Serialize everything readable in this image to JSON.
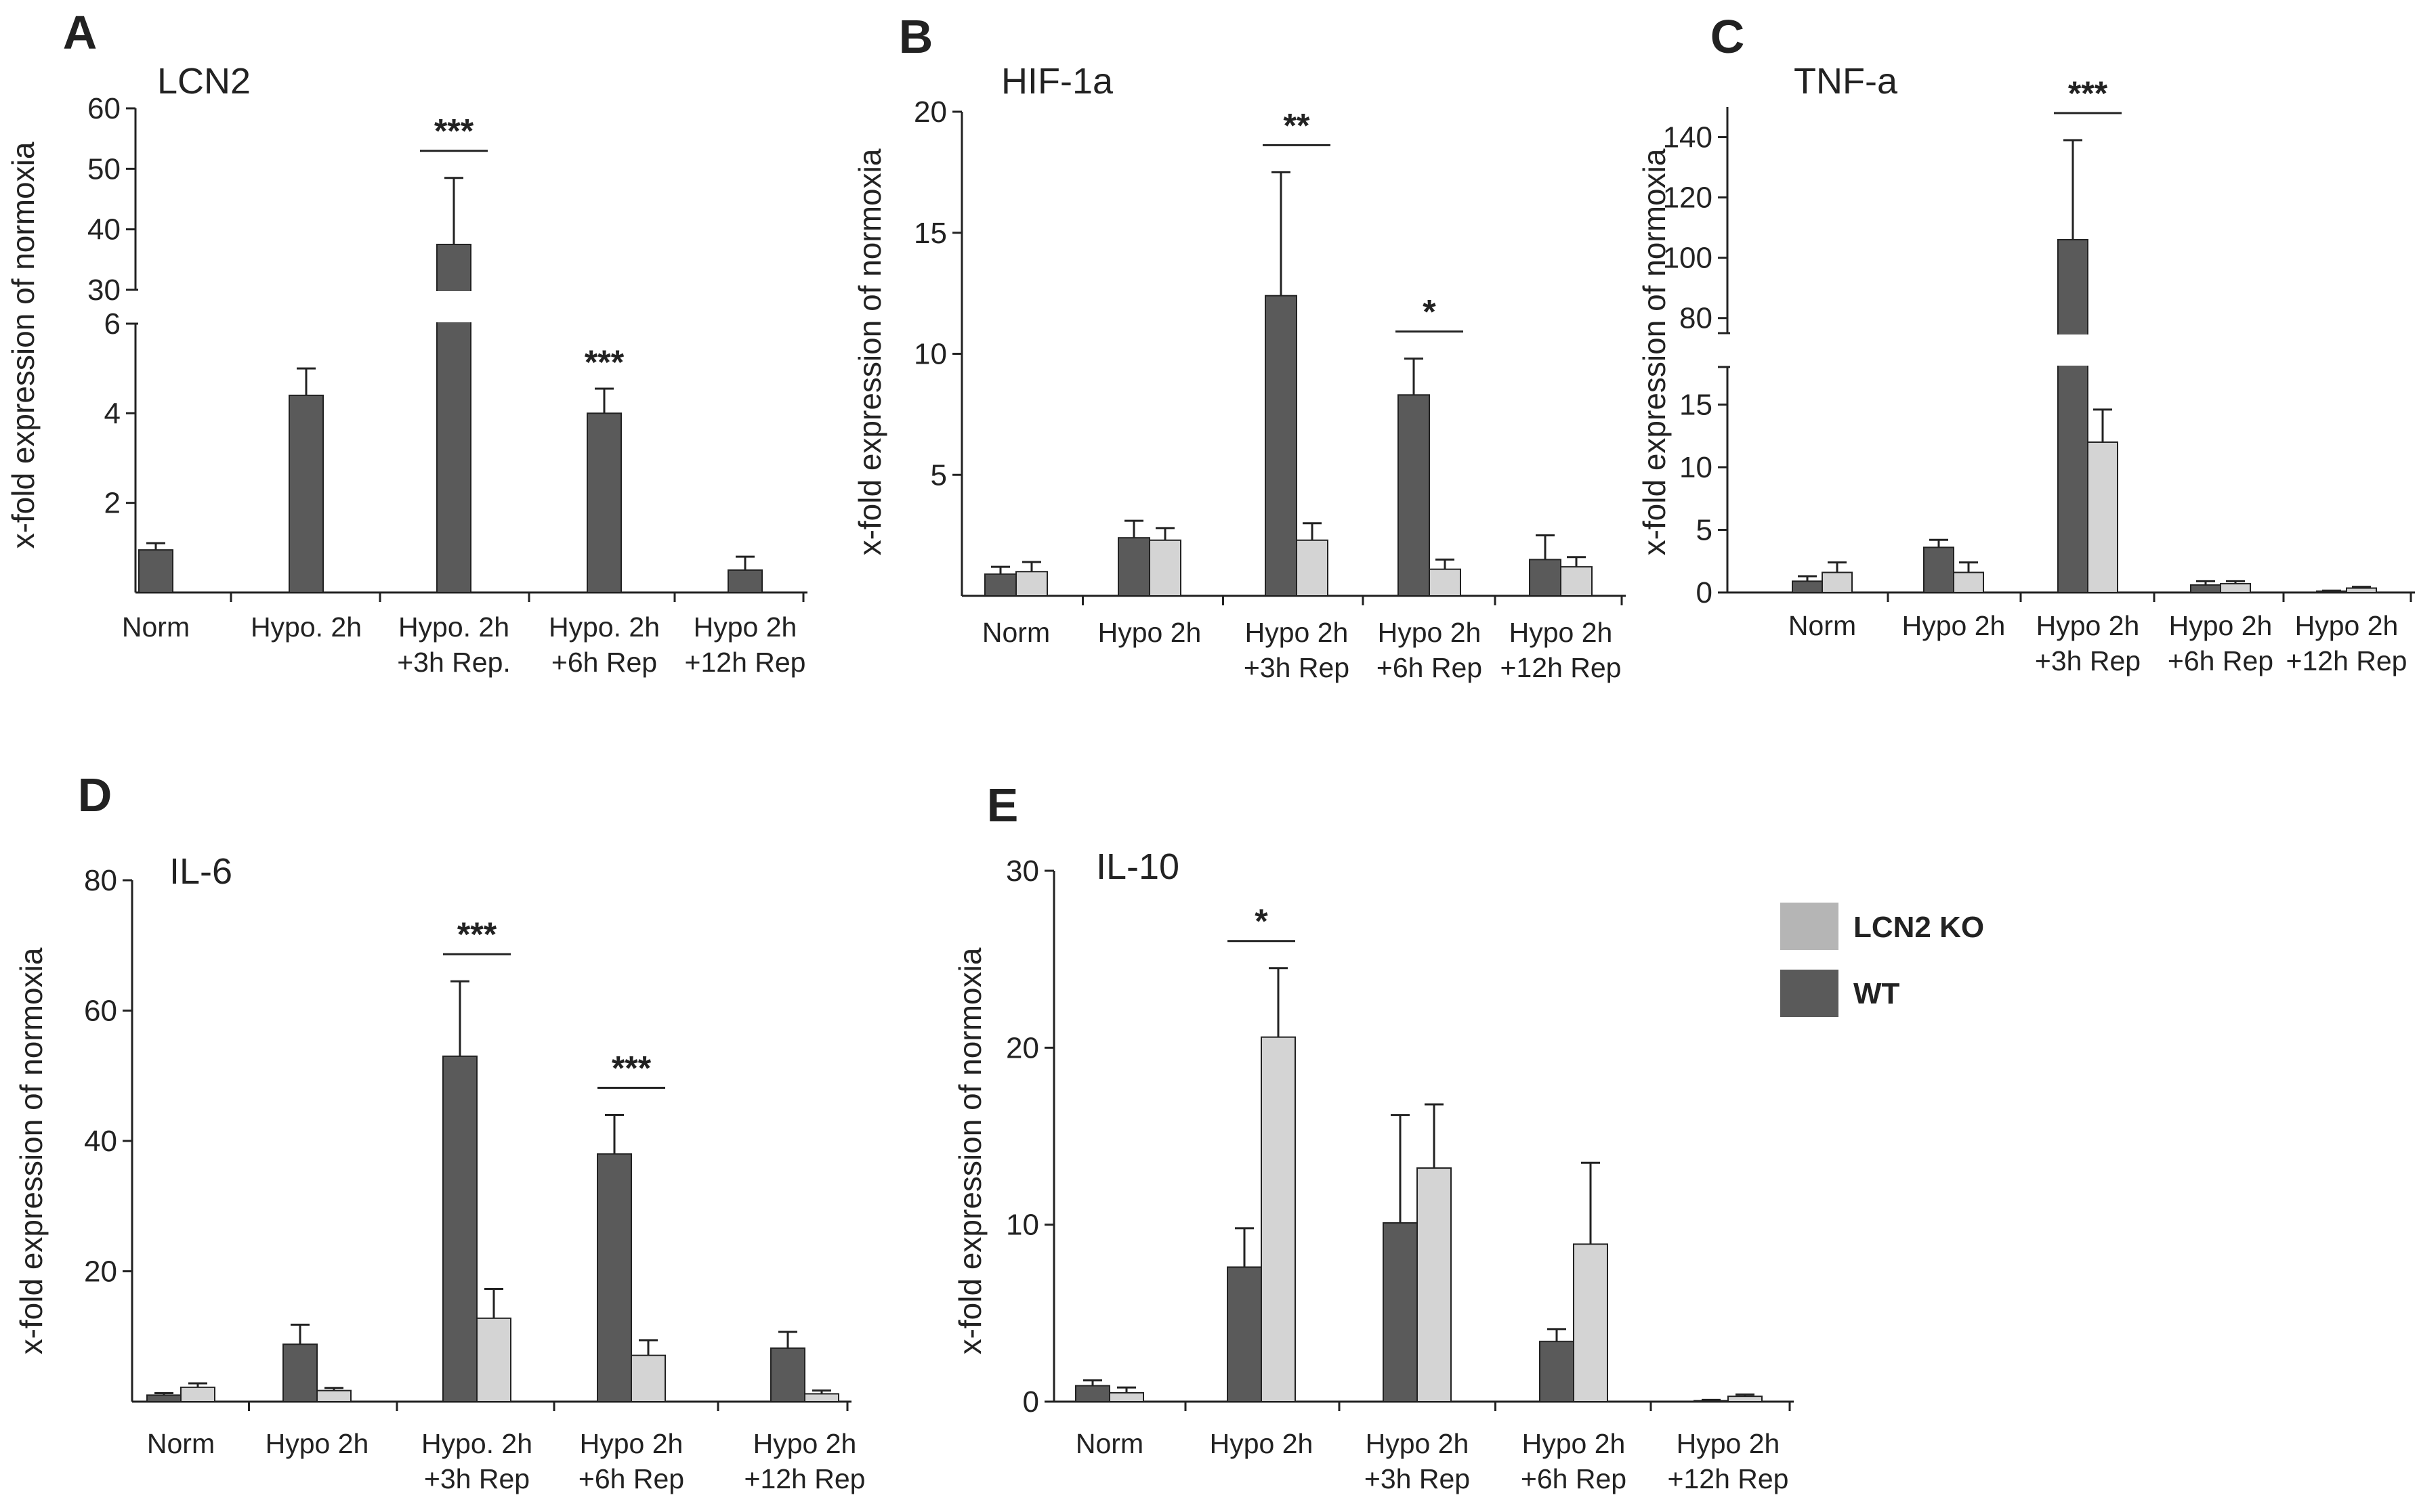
{
  "colors": {
    "wt": "#5a5a5a",
    "ko": "#d4d4d4",
    "axis": "#222222"
  },
  "legend": [
    {
      "name": "LCN2 KO",
      "color": "#b5b5b5"
    },
    {
      "name": "WT",
      "color": "#5a5a5a"
    }
  ],
  "chart_data": [
    {
      "panel": "A",
      "title": "LCN2",
      "type": "bar",
      "ylabel": "x-fold expression of normoxia",
      "categories": [
        [
          "Norm"
        ],
        [
          "Hypo. 2h"
        ],
        [
          "Hypo. 2h",
          "+3h Rep."
        ],
        [
          "Hypo. 2h",
          "+6h Rep"
        ],
        [
          "Hypo 2h",
          "+12h Rep"
        ]
      ],
      "axis_break": {
        "lower": [
          0,
          6
        ],
        "upper": [
          30,
          60
        ]
      },
      "lower_ticks": [
        2,
        4,
        6
      ],
      "upper_ticks": [
        30,
        40,
        50,
        60
      ],
      "series": [
        {
          "name": "WT",
          "values": [
            0.95,
            4.4,
            37.5,
            4.0,
            0.5
          ],
          "errors": [
            0.15,
            0.6,
            11,
            0.55,
            0.3
          ]
        }
      ],
      "significance": [
        {
          "category": 2,
          "label": "***",
          "line": true
        },
        {
          "category": 3,
          "label": "***",
          "line": false
        }
      ]
    },
    {
      "panel": "B",
      "title": "HIF-1a",
      "type": "bar",
      "ylabel": "x-fold expression of normoxia",
      "categories": [
        [
          "Norm"
        ],
        [
          "Hypo 2h"
        ],
        [
          "Hypo 2h",
          "+3h Rep"
        ],
        [
          "Hypo 2h",
          "+6h Rep"
        ],
        [
          "Hypo 2h",
          "+12h Rep"
        ]
      ],
      "ylim": [
        0,
        20
      ],
      "ticks": [
        5,
        10,
        15,
        20
      ],
      "series": [
        {
          "name": "WT",
          "values": [
            0.9,
            2.4,
            12.4,
            8.3,
            1.5
          ],
          "errors": [
            0.3,
            0.7,
            5.1,
            1.5,
            1.0
          ]
        },
        {
          "name": "LCN2 KO",
          "values": [
            1.0,
            2.3,
            2.3,
            1.1,
            1.2
          ],
          "errors": [
            0.4,
            0.5,
            0.7,
            0.4,
            0.4
          ]
        }
      ],
      "significance": [
        {
          "category": 2,
          "label": "**",
          "line": true
        },
        {
          "category": 3,
          "label": "*",
          "line": true
        }
      ]
    },
    {
      "panel": "C",
      "title": "TNF-a",
      "type": "bar",
      "ylabel": "x-fold expression of normoxia",
      "categories": [
        [
          "Norm"
        ],
        [
          "Hypo 2h"
        ],
        [
          "Hypo 2h",
          "+3h Rep"
        ],
        [
          "Hypo 2h",
          "+6h Rep"
        ],
        [
          "Hypo 2h",
          "+12h Rep"
        ]
      ],
      "axis_break": {
        "lower": [
          0,
          18
        ],
        "upper": [
          75,
          150
        ]
      },
      "lower_ticks": [
        0,
        5,
        10,
        15
      ],
      "upper_ticks": [
        80,
        100,
        120,
        140
      ],
      "series": [
        {
          "name": "WT",
          "values": [
            0.9,
            3.6,
            106,
            0.6,
            0.1
          ],
          "errors": [
            0.4,
            0.6,
            33,
            0.3,
            0.05
          ]
        },
        {
          "name": "LCN2 KO",
          "values": [
            1.6,
            1.6,
            12.0,
            0.7,
            0.35
          ],
          "errors": [
            0.8,
            0.8,
            2.6,
            0.2,
            0.1
          ]
        }
      ],
      "significance": [
        {
          "category": 2,
          "label": "***",
          "line": true
        }
      ]
    },
    {
      "panel": "D",
      "title": "IL-6",
      "type": "bar",
      "ylabel": "x-fold expression of normoxia",
      "categories": [
        [
          "Norm"
        ],
        [
          "Hypo 2h"
        ],
        [
          "Hypo. 2h",
          "+3h Rep"
        ],
        [
          "Hypo 2h",
          "+6h Rep"
        ],
        [
          "Hypo 2h",
          "+12h Rep"
        ]
      ],
      "ylim": [
        0,
        80
      ],
      "ticks": [
        20,
        40,
        60,
        80
      ],
      "series": [
        {
          "name": "WT",
          "values": [
            1.0,
            8.8,
            53,
            38,
            8.2
          ],
          "errors": [
            0.3,
            3.0,
            11.5,
            6.0,
            2.5
          ]
        },
        {
          "name": "LCN2 KO",
          "values": [
            2.2,
            1.7,
            12.8,
            7.1,
            1.2
          ],
          "errors": [
            0.6,
            0.4,
            4.5,
            2.3,
            0.5
          ]
        }
      ],
      "significance": [
        {
          "category": 2,
          "label": "***",
          "line": true
        },
        {
          "category": 3,
          "label": "***",
          "line": true
        }
      ]
    },
    {
      "panel": "E",
      "title": "IL-10",
      "type": "bar",
      "ylabel": "x-fold expression of normoxia",
      "categories": [
        [
          "Norm"
        ],
        [
          "Hypo 2h"
        ],
        [
          "Hypo 2h",
          "+3h Rep"
        ],
        [
          "Hypo 2h",
          "+6h Rep"
        ],
        [
          "Hypo 2h",
          "+12h Rep"
        ]
      ],
      "ylim": [
        0,
        30
      ],
      "ticks": [
        0,
        10,
        20,
        30
      ],
      "series": [
        {
          "name": "WT",
          "values": [
            0.9,
            7.6,
            10.1,
            3.4,
            0.05
          ],
          "errors": [
            0.3,
            2.2,
            6.1,
            0.7,
            0.05
          ]
        },
        {
          "name": "LCN2 KO",
          "values": [
            0.5,
            20.6,
            13.2,
            8.9,
            0.3
          ],
          "errors": [
            0.3,
            3.9,
            3.6,
            4.6,
            0.1
          ]
        }
      ],
      "significance": [
        {
          "category": 1,
          "label": "*",
          "line": true
        }
      ]
    }
  ]
}
